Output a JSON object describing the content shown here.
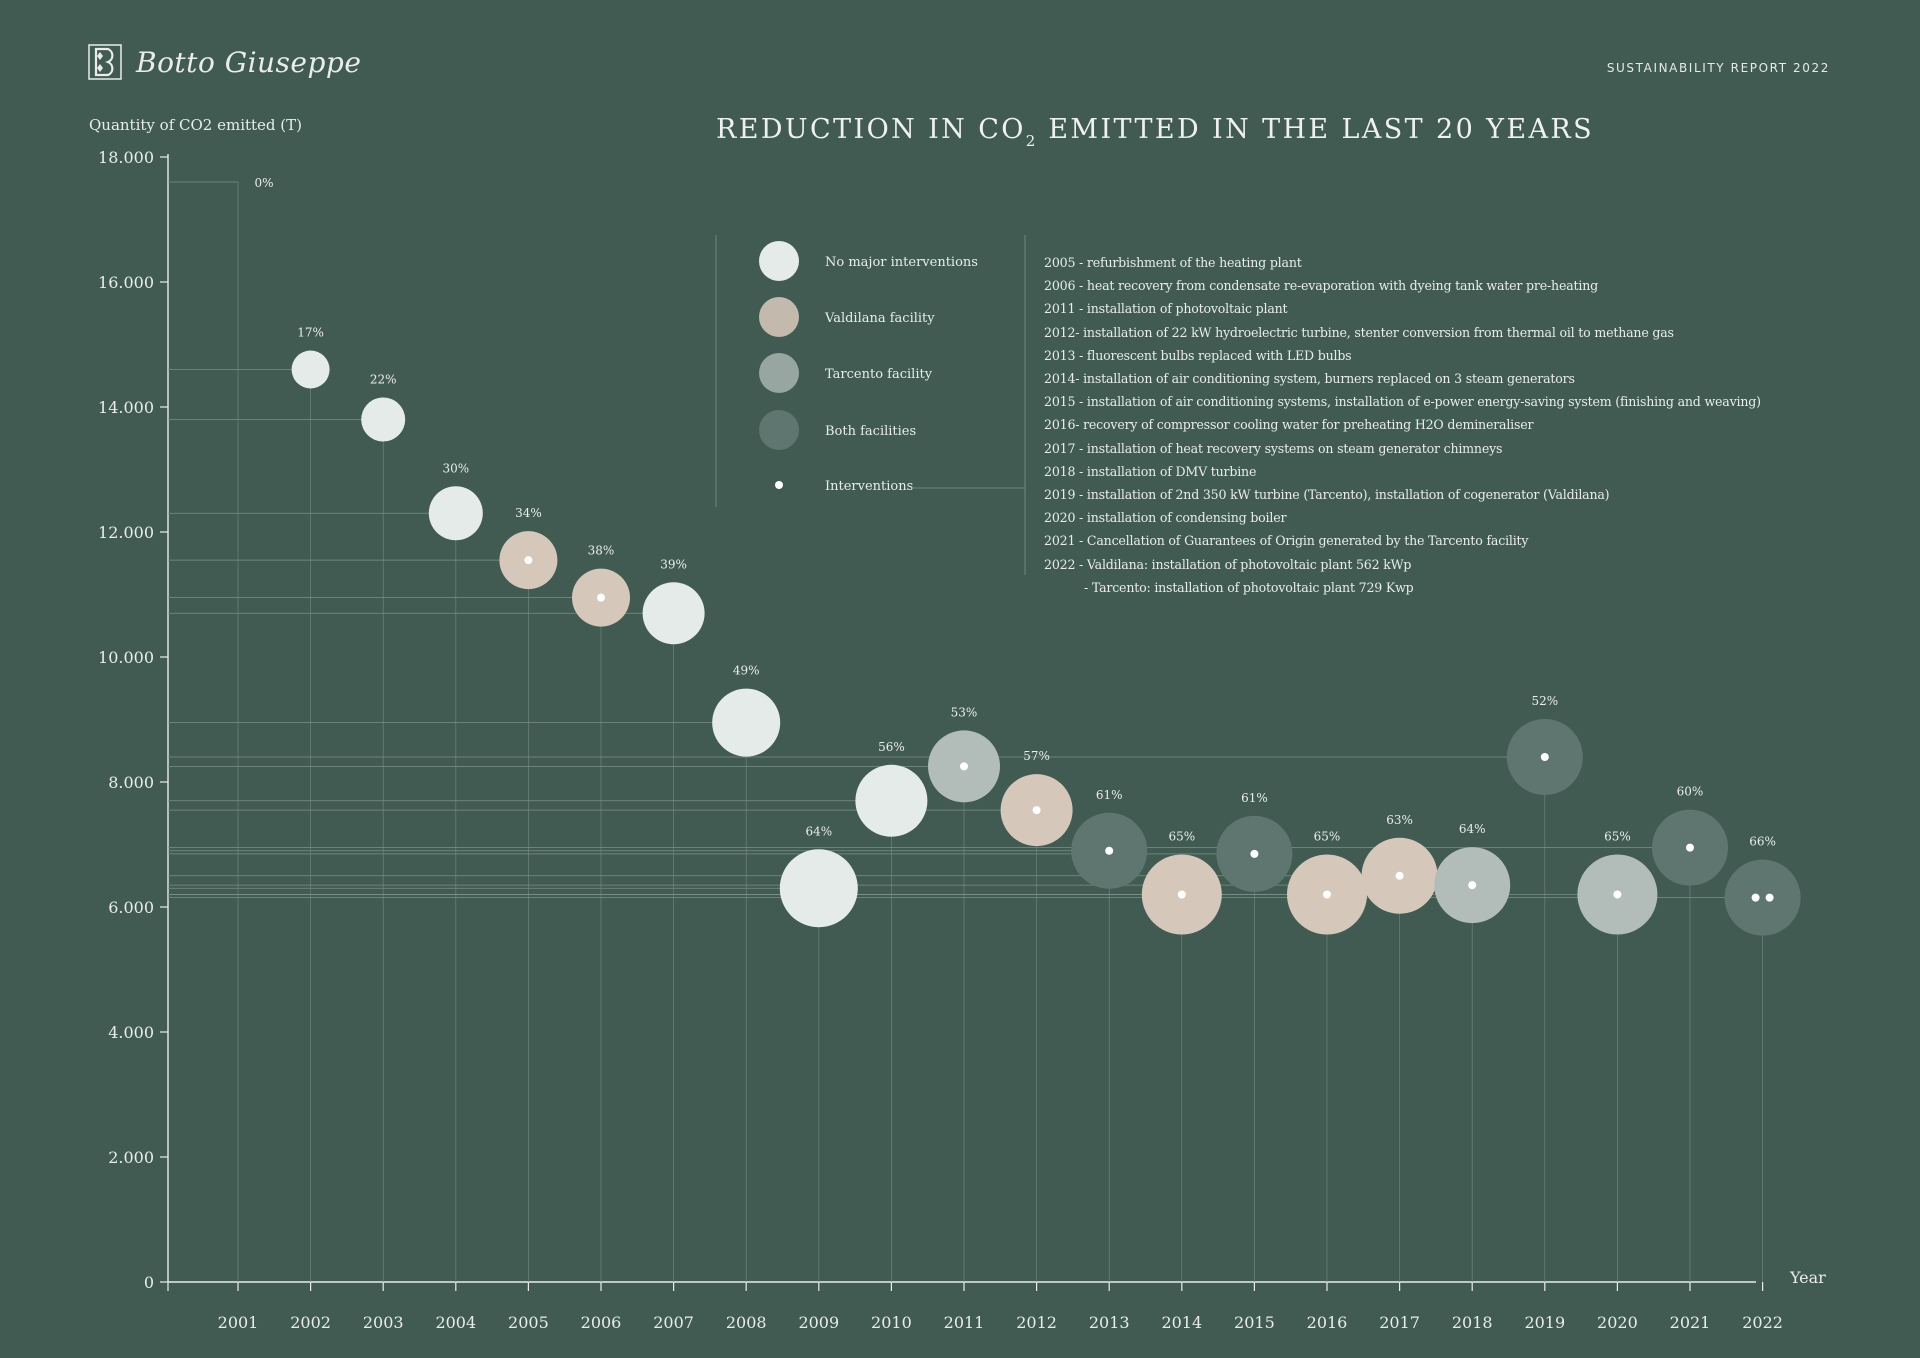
{
  "header": {
    "brand_name": "Botto Giuseppe",
    "report_label": "SUSTAINABILITY REPORT 2022",
    "title_part1": "REDUCTION IN CO",
    "title_sub": "2",
    "title_part2": " EMITTED IN THE LAST 20 YEARS"
  },
  "legend": {
    "items": [
      {
        "label": "No major interventions",
        "color": "#e5ebe9",
        "kind": "circle"
      },
      {
        "label": "Valdilana facility",
        "color": "#c4b9ad",
        "kind": "circle"
      },
      {
        "label": "Tarcento facility",
        "color": "#97a6a1",
        "kind": "circle"
      },
      {
        "label": "Both facilities",
        "color": "#5f7670",
        "kind": "circle"
      },
      {
        "label": "Interventions",
        "color": "#ffffff",
        "kind": "dot"
      }
    ]
  },
  "interventions": [
    "2005 - refurbishment of the heating plant",
    "2006 - heat recovery from condensate re-evaporation with dyeing tank water pre-heating",
    "2011 - installation of photovoltaic plant",
    "2012- installation of 22 kW hydroelectric turbine, stenter conversion from thermal oil to methane gas",
    "2013 - fluorescent bulbs replaced with LED bulbs",
    "2014- installation of air conditioning system, burners replaced on 3 steam generators",
    "2015 - installation of air conditioning systems, installation of e-power energy-saving system (finishing and weaving)",
    "2016- recovery of compressor cooling water for preheating H2O demineraliser",
    "2017 - installation of heat recovery systems on steam generator chimneys",
    "2018 - installation of DMV turbine",
    "2019 - installation of 2nd 350 kW turbine (Tarcento), installation of cogenerator (Valdilana)",
    "2020 - installation of condensing boiler",
    "2021 - Cancellation of Guarantees of Origin generated by the Tarcento facility",
    "2022 - Valdilana: installation of photovoltaic plant 562 kWp",
    "- Tarcento: installation of photovoltaic plant 729 Kwp"
  ],
  "chart_data": {
    "type": "scatter",
    "title": "REDUCTION IN CO2 EMITTED IN THE LAST 20 YEARS",
    "ylabel": "Quantity of CO2 emitted (T)",
    "xlabel": "Year",
    "ylim": [
      0,
      18000
    ],
    "yticks": [
      0,
      2000,
      4000,
      6000,
      8000,
      10000,
      12000,
      14000,
      16000,
      18000
    ],
    "ytick_labels": [
      "0",
      "2.000",
      "4.000",
      "6.000",
      "8.000",
      "10.000",
      "12.000",
      "14.000",
      "16.000",
      "18.000"
    ],
    "categories": [
      "2001",
      "2002",
      "2003",
      "2004",
      "2005",
      "2006",
      "2007",
      "2008",
      "2009",
      "2010",
      "2011",
      "2012",
      "2013",
      "2014",
      "2015",
      "2016",
      "2017",
      "2018",
      "2019",
      "2020",
      "2021",
      "2022"
    ],
    "grid": "vertical guide lines per year, horizontal guide lines to y-axis",
    "points": [
      {
        "year": "2001",
        "value": 17600,
        "reduction": "0%",
        "facility": "none",
        "interventions": 0
      },
      {
        "year": "2002",
        "value": 14600,
        "reduction": "17%",
        "facility": "none",
        "interventions": 0
      },
      {
        "year": "2003",
        "value": 13800,
        "reduction": "22%",
        "facility": "none",
        "interventions": 0
      },
      {
        "year": "2004",
        "value": 12300,
        "reduction": "30%",
        "facility": "none",
        "interventions": 0
      },
      {
        "year": "2005",
        "value": 11550,
        "reduction": "34%",
        "facility": "valdilana",
        "interventions": 1
      },
      {
        "year": "2006",
        "value": 10950,
        "reduction": "38%",
        "facility": "valdilana",
        "interventions": 1
      },
      {
        "year": "2007",
        "value": 10700,
        "reduction": "39%",
        "facility": "none",
        "interventions": 0
      },
      {
        "year": "2008",
        "value": 8950,
        "reduction": "49%",
        "facility": "none",
        "interventions": 0
      },
      {
        "year": "2009",
        "value": 6300,
        "reduction": "64%",
        "facility": "none",
        "interventions": 0
      },
      {
        "year": "2010",
        "value": 7700,
        "reduction": "56%",
        "facility": "none",
        "interventions": 0
      },
      {
        "year": "2011",
        "value": 8250,
        "reduction": "53%",
        "facility": "tarcento",
        "interventions": 1
      },
      {
        "year": "2012",
        "value": 7550,
        "reduction": "57%",
        "facility": "valdilana",
        "interventions": 1
      },
      {
        "year": "2013",
        "value": 6900,
        "reduction": "61%",
        "facility": "both",
        "interventions": 1
      },
      {
        "year": "2014",
        "value": 6200,
        "reduction": "65%",
        "facility": "valdilana",
        "interventions": 1
      },
      {
        "year": "2015",
        "value": 6850,
        "reduction": "61%",
        "facility": "both",
        "interventions": 1
      },
      {
        "year": "2016",
        "value": 6200,
        "reduction": "65%",
        "facility": "valdilana",
        "interventions": 1
      },
      {
        "year": "2017",
        "value": 6500,
        "reduction": "63%",
        "facility": "valdilana",
        "interventions": 1
      },
      {
        "year": "2018",
        "value": 6350,
        "reduction": "64%",
        "facility": "tarcento",
        "interventions": 1
      },
      {
        "year": "2019",
        "value": 8400,
        "reduction": "52%",
        "facility": "both",
        "interventions": 1
      },
      {
        "year": "2020",
        "value": 6200,
        "reduction": "65%",
        "facility": "tarcento",
        "interventions": 1
      },
      {
        "year": "2021",
        "value": 6950,
        "reduction": "60%",
        "facility": "both",
        "interventions": 1
      },
      {
        "year": "2022",
        "value": 6150,
        "reduction": "66%",
        "facility": "both",
        "interventions": 2
      }
    ]
  },
  "colors": {
    "background": "#415b53",
    "none": "#e5ebe9",
    "valdilana": "#d6c7bb",
    "tarcento": "#b2bdb9",
    "both": "#5f7670"
  }
}
